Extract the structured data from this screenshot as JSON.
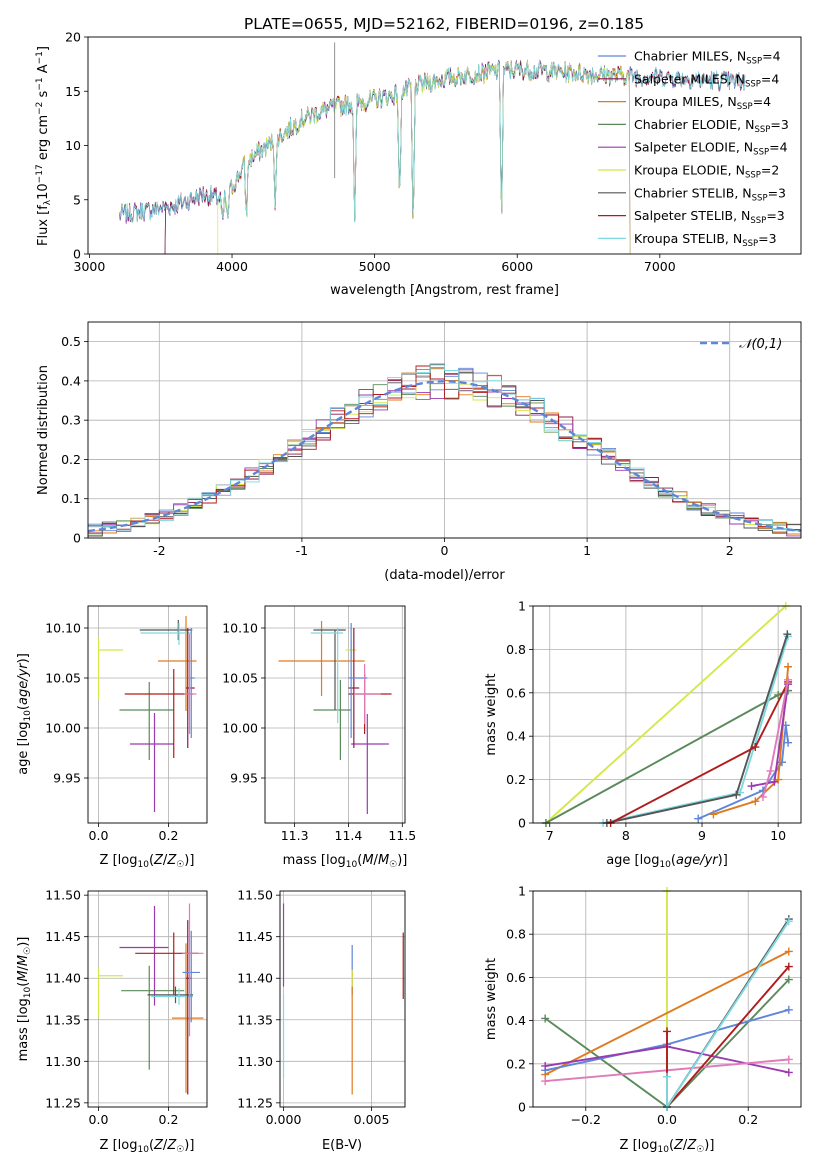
{
  "figure_title": "PLATE=0655, MJD=52162, FIBERID=0196, z=0.185",
  "colors": {
    "Chabrier MILES": "#5f86d8",
    "Salpeter MILES": "#8b1a4a",
    "Kroupa MILES": "#e07a1f",
    "Chabrier ELODIE": "#5a8a5a",
    "Salpeter ELODIE": "#9a3bb0",
    "Kroupa ELODIE": "#d4e84a",
    "Chabrier STELIB": "#555555",
    "Salpeter STELIB": "#b01c1c",
    "Kroupa STELIB": "#7fd8e0",
    "Salpeter pink": "#e07ab8"
  },
  "chart_data": [
    {
      "id": "spectrum",
      "type": "line",
      "title": "PLATE=0655, MJD=52162, FIBERID=0196, z=0.185",
      "xlabel": "wavelength [Angstrom, rest frame]",
      "ylabel": "Flux [f_λ 10^-17 erg cm^-2 s^-1 A^-1]",
      "xlim": [
        2990,
        7990
      ],
      "ylim": [
        0,
        20
      ],
      "xticks": [
        3000,
        4000,
        5000,
        6000,
        7000
      ],
      "yticks": [
        0,
        5,
        10,
        15,
        20
      ],
      "legend_loc": "right",
      "legend": [
        {
          "name": "Chabrier MILES",
          "nssp": "4"
        },
        {
          "name": "Salpeter MILES",
          "nssp": "4"
        },
        {
          "name": "Kroupa MILES",
          "nssp": "4"
        },
        {
          "name": "Chabrier ELODIE",
          "nssp": "3"
        },
        {
          "name": "Salpeter ELODIE",
          "nssp": "4"
        },
        {
          "name": "Kroupa ELODIE",
          "nssp": "2"
        },
        {
          "name": "Chabrier STELIB",
          "nssp": "3"
        },
        {
          "name": "Salpeter STELIB",
          "nssp": "3"
        },
        {
          "name": "Kroupa STELIB",
          "nssp": "3"
        }
      ],
      "continuum": [
        [
          3210,
          3.6
        ],
        [
          3400,
          4.0
        ],
        [
          3600,
          4.5
        ],
        [
          3800,
          5.5
        ],
        [
          3950,
          5.0
        ],
        [
          4100,
          8.5
        ],
        [
          4300,
          10.5
        ],
        [
          4500,
          12.5
        ],
        [
          4700,
          13.5
        ],
        [
          4900,
          14.0
        ],
        [
          5100,
          14.5
        ],
        [
          5300,
          15.5
        ],
        [
          5500,
          16.2
        ],
        [
          5800,
          16.8
        ],
        [
          6000,
          17.0
        ],
        [
          6300,
          16.8
        ],
        [
          6600,
          16.5
        ],
        [
          7000,
          16.3
        ],
        [
          7400,
          16.0
        ],
        [
          7600,
          15.8
        ]
      ],
      "absorption": [
        [
          3934,
          2.5
        ],
        [
          3969,
          2.5
        ],
        [
          4101,
          5.5
        ],
        [
          4304,
          6.5
        ],
        [
          4861,
          11.5
        ],
        [
          5175,
          11.5
        ],
        [
          5270,
          14.5
        ],
        [
          5890,
          14.8
        ]
      ],
      "spikes": [
        [
          4720,
          7.0,
          19.5
        ]
      ]
    },
    {
      "id": "residuals",
      "type": "histogram",
      "xlabel": "(data-model)/error",
      "ylabel": "Normed distribution",
      "xlim": [
        -2.5,
        2.5
      ],
      "ylim": [
        0,
        0.55
      ],
      "xticks": [
        -2,
        -1,
        0,
        1,
        2
      ],
      "yticks": [
        0.0,
        0.1,
        0.2,
        0.3,
        0.4,
        0.5
      ],
      "legend_label": "𝒩(0,1)",
      "legend_loc": "upper right",
      "bin_width": 0.1
    },
    {
      "id": "age_vs_Z",
      "type": "errorbar",
      "xlabel": "Z [log10(Z/Z☉)]",
      "ylabel": "age [log10(age/yr)]",
      "xlim": [
        -0.03,
        0.31
      ],
      "ylim": [
        9.905,
        10.122
      ],
      "xticks": [
        0.0,
        0.2
      ],
      "xtick_labels": [
        "0.0",
        "0.2"
      ],
      "yticks": [
        9.95,
        10.0,
        10.05,
        10.1
      ],
      "ytick_labels": [
        "9.95",
        "10.00",
        "10.05",
        "10.10"
      ],
      "points": [
        {
          "series": "Kroupa ELODIE",
          "x": 0.0,
          "xerr": [
            0.0,
            0.07
          ],
          "y": 10.078,
          "yerr": [
            0.05,
            0.012
          ]
        },
        {
          "series": "Chabrier ELODIE",
          "x": 0.145,
          "xerr": [
            0.085,
            0.07
          ],
          "y": 10.018,
          "yerr": [
            0.05,
            0.028
          ]
        },
        {
          "series": "Salpeter ELODIE",
          "x": 0.16,
          "xerr": [
            0.07,
            0.055
          ],
          "y": 9.984,
          "yerr": [
            0.068,
            0.031
          ]
        },
        {
          "series": "Salpeter STELIB",
          "x": 0.215,
          "xerr": [
            0.14,
            0.055
          ],
          "y": 10.034,
          "yerr": [
            0.064,
            0.025
          ]
        },
        {
          "series": "Kroupa MILES",
          "x": 0.25,
          "xerr": [
            0.08,
            0.03
          ],
          "y": 10.067,
          "yerr": [
            0.05,
            0.045
          ]
        },
        {
          "series": "Chabrier STELIB",
          "x": 0.228,
          "xerr": [
            0.11,
            0.04
          ],
          "y": 10.098,
          "yerr": [
            0.01,
            0.01
          ]
        },
        {
          "series": "Kroupa STELIB",
          "x": 0.23,
          "xerr": [
            0.11,
            0.035
          ],
          "y": 10.095,
          "yerr": [
            0.012,
            0.01
          ]
        },
        {
          "series": "Salpeter MILES",
          "x": 0.255,
          "xerr": [
            0.005,
            0.02
          ],
          "y": 10.04,
          "yerr": [
            0.06,
            0.06
          ]
        },
        {
          "series": "Chabrier MILES",
          "x": 0.265,
          "xerr": [
            0.005,
            0.01
          ],
          "y": 10.05,
          "yerr": [
            0.06,
            0.05
          ]
        },
        {
          "series": "Salpeter pink",
          "x": 0.26,
          "xerr": [
            0.015,
            0.02
          ],
          "y": 10.034,
          "yerr": [
            0.04,
            0.06
          ]
        }
      ]
    },
    {
      "id": "age_vs_mass",
      "type": "errorbar",
      "xlabel": "mass [log10(M/M☉)]",
      "ylabel": "",
      "xlim": [
        11.245,
        11.505
      ],
      "ylim": [
        9.905,
        10.122
      ],
      "xticks": [
        11.3,
        11.4,
        11.5
      ],
      "xtick_labels": [
        "11.3",
        "11.4",
        "11.5"
      ],
      "yticks": [
        9.95,
        10.0,
        10.05,
        10.1
      ],
      "ytick_labels": [
        "9.95",
        "10.00",
        "10.05",
        "10.10"
      ],
      "points": [
        {
          "series": "Kroupa ELODIE",
          "x": 11.405,
          "xerr": [
            0.01,
            0.01
          ],
          "y": 10.078,
          "yerr": [
            0.01,
            0.01
          ]
        },
        {
          "series": "Chabrier ELODIE",
          "x": 11.385,
          "xerr": [
            0.05,
            0.02
          ],
          "y": 10.018,
          "yerr": [
            0.05,
            0.03
          ]
        },
        {
          "series": "Salpeter ELODIE",
          "x": 11.435,
          "xerr": [
            0.03,
            0.04
          ],
          "y": 9.984,
          "yerr": [
            0.07,
            0.03
          ]
        },
        {
          "series": "Salpeter STELIB",
          "x": 11.43,
          "xerr": [
            0.03,
            0.05
          ],
          "y": 10.034,
          "yerr": [
            0.04,
            0.02
          ]
        },
        {
          "series": "Kroupa MILES",
          "x": 11.35,
          "xerr": [
            0.08,
            0.08
          ],
          "y": 10.067,
          "yerr": [
            0.035,
            0.04
          ]
        },
        {
          "series": "Chabrier STELIB",
          "x": 11.375,
          "xerr": [
            0.04,
            0.02
          ],
          "y": 10.098,
          "yerr": [
            0.08,
            0.0
          ]
        },
        {
          "series": "Kroupa STELIB",
          "x": 11.38,
          "xerr": [
            0.05,
            0.01
          ],
          "y": 10.095,
          "yerr": [
            0.09,
            0.005
          ]
        },
        {
          "series": "Salpeter MILES",
          "x": 11.41,
          "xerr": [
            0.01,
            0.01
          ],
          "y": 10.04,
          "yerr": [
            0.06,
            0.06
          ]
        },
        {
          "series": "Chabrier MILES",
          "x": 11.405,
          "xerr": [
            0.005,
            0.03
          ],
          "y": 10.05,
          "yerr": [
            0.06,
            0.055
          ]
        },
        {
          "series": "Salpeter pink",
          "x": 11.43,
          "xerr": [
            0.02,
            0.03
          ],
          "y": 10.034,
          "yerr": [
            0.03,
            0.03
          ]
        }
      ]
    },
    {
      "id": "weight_vs_age",
      "type": "line",
      "xlabel": "age  [log10(age/yr)]",
      "ylabel": "mass weight",
      "xlim": [
        6.78,
        10.3
      ],
      "ylim": [
        0,
        1.0
      ],
      "xticks": [
        7,
        8,
        9,
        10
      ],
      "yticks": [
        0.0,
        0.2,
        0.4,
        0.6,
        0.8,
        1.0
      ],
      "series": [
        {
          "name": "Kroupa ELODIE",
          "x": [
            6.95,
            10.1
          ],
          "y": [
            0.0,
            1.0
          ]
        },
        {
          "name": "Chabrier ELODIE",
          "x": [
            6.95,
            10.0,
            10.13
          ],
          "y": [
            0.0,
            0.59,
            0.61
          ]
        },
        {
          "name": "Kroupa STELIB",
          "x": [
            7.7,
            9.5,
            10.13
          ],
          "y": [
            0.0,
            0.14,
            0.86
          ]
        },
        {
          "name": "Chabrier STELIB",
          "x": [
            7.75,
            9.45,
            10.12
          ],
          "y": [
            0.0,
            0.13,
            0.87
          ]
        },
        {
          "name": "Salpeter STELIB",
          "x": [
            7.8,
            9.7,
            10.13
          ],
          "y": [
            0.0,
            0.35,
            0.65
          ]
        },
        {
          "name": "Chabrier MILES",
          "x": [
            8.95,
            9.8,
            10.05,
            10.1,
            10.13
          ],
          "y": [
            0.02,
            0.15,
            0.28,
            0.45,
            0.37
          ]
        },
        {
          "name": "Kroupa MILES",
          "x": [
            9.15,
            9.7,
            10.0,
            10.13
          ],
          "y": [
            0.04,
            0.1,
            0.2,
            0.72
          ]
        },
        {
          "name": "Salpeter ELODIE",
          "x": [
            9.65,
            9.95,
            10.13
          ],
          "y": [
            0.17,
            0.19,
            0.64
          ]
        },
        {
          "name": "Salpeter pink",
          "x": [
            9.8,
            9.9,
            10.13
          ],
          "y": [
            0.12,
            0.24,
            0.66
          ]
        }
      ]
    },
    {
      "id": "mass_vs_Z",
      "type": "errorbar",
      "xlabel": "Z [log10(Z/Z☉)]",
      "ylabel": "mass [log10(M/M☉)]",
      "xlim": [
        -0.03,
        0.31
      ],
      "ylim": [
        11.245,
        11.505
      ],
      "xticks": [
        0.0,
        0.2
      ],
      "xtick_labels": [
        "0.0",
        "0.2"
      ],
      "yticks": [
        11.25,
        11.3,
        11.35,
        11.4,
        11.45,
        11.5
      ],
      "ytick_labels": [
        "11.25",
        "11.30",
        "11.35",
        "11.40",
        "11.45",
        "11.50"
      ],
      "points": [
        {
          "series": "Kroupa ELODIE",
          "x": 0.0,
          "xerr": [
            0.0,
            0.07
          ],
          "y": 11.403,
          "yerr": [
            0.05,
            0.01
          ]
        },
        {
          "series": "Chabrier ELODIE",
          "x": 0.145,
          "xerr": [
            0.08,
            0.1
          ],
          "y": 11.385,
          "yerr": [
            0.095,
            0.03
          ]
        },
        {
          "series": "Salpeter ELODIE",
          "x": 0.16,
          "xerr": [
            0.1,
            0.04
          ],
          "y": 11.437,
          "yerr": [
            0.07,
            0.05
          ]
        },
        {
          "series": "Salpeter STELIB",
          "x": 0.215,
          "xerr": [
            0.11,
            0.07
          ],
          "y": 11.43,
          "yerr": [
            0.05,
            0.025
          ]
        },
        {
          "series": "Kroupa MILES",
          "x": 0.25,
          "xerr": [
            0.04,
            0.05
          ],
          "y": 11.352,
          "yerr": [
            0.09,
            0.09
          ]
        },
        {
          "series": "Chabrier STELIB",
          "x": 0.22,
          "xerr": [
            0.08,
            0.05
          ],
          "y": 11.38,
          "yerr": [
            0.01,
            0.01
          ]
        },
        {
          "series": "Kroupa STELIB",
          "x": 0.23,
          "xerr": [
            0.08,
            0.04
          ],
          "y": 11.378,
          "yerr": [
            0.01,
            0.01
          ]
        },
        {
          "series": "Salpeter MILES",
          "x": 0.255,
          "xerr": [
            0.005,
            0.01
          ],
          "y": 11.4,
          "yerr": [
            0.14,
            0.07
          ]
        },
        {
          "series": "Chabrier MILES",
          "x": 0.265,
          "xerr": [
            0.025,
            0.025
          ],
          "y": 11.407,
          "yerr": [
            0.06,
            0.05
          ]
        },
        {
          "series": "Salpeter pink",
          "x": 0.26,
          "xerr": [
            0.02,
            0.04
          ],
          "y": 11.43,
          "yerr": [
            0.1,
            0.06
          ]
        }
      ]
    },
    {
      "id": "mass_vs_ebv",
      "type": "errorbar",
      "xlabel": "E(B-V)",
      "ylabel": "",
      "xlim": [
        -0.0002,
        0.0069
      ],
      "ylim": [
        11.245,
        11.505
      ],
      "xticks": [
        0.0,
        0.005
      ],
      "xtick_labels": [
        "0.000",
        "0.005"
      ],
      "yticks": [
        11.25,
        11.3,
        11.35,
        11.4,
        11.45,
        11.5
      ],
      "ytick_labels": [
        "11.25",
        "11.30",
        "11.35",
        "11.40",
        "11.45",
        "11.50"
      ],
      "points": [
        {
          "series": "Salpeter ELODIE",
          "x": 0.0,
          "xerr": [
            0,
            0
          ],
          "y": 11.44,
          "yerr": [
            0.05,
            0.05
          ]
        },
        {
          "series": "Kroupa STELIB",
          "x": 0.0,
          "xerr": [
            0,
            0
          ],
          "y": 11.33,
          "yerr": [
            0.05,
            0.05
          ]
        },
        {
          "series": "Chabrier MILES",
          "x": 0.0039,
          "xerr": [
            0,
            0
          ],
          "y": 11.41,
          "yerr": [
            0.03,
            0.03
          ]
        },
        {
          "series": "Kroupa MILES",
          "x": 0.0039,
          "xerr": [
            0,
            0
          ],
          "y": 11.35,
          "yerr": [
            0.09,
            0.06
          ]
        },
        {
          "series": "Kroupa ELODIE",
          "x": 0.0039,
          "xerr": [
            0,
            0
          ],
          "y": 11.4,
          "yerr": [
            0.01,
            0.01
          ]
        },
        {
          "series": "Salpeter STELIB",
          "x": 0.0068,
          "xerr": [
            0,
            0
          ],
          "y": 11.415,
          "yerr": [
            0.04,
            0.04
          ]
        }
      ]
    },
    {
      "id": "weight_vs_Z",
      "type": "line",
      "xlabel": "Z [log10(Z/Z☉)]",
      "ylabel": "mass weight",
      "xlim": [
        -0.33,
        0.33
      ],
      "ylim": [
        0,
        1.0
      ],
      "xticks": [
        -0.2,
        0.0,
        0.2
      ],
      "xtick_labels": [
        "−0.2",
        "0.0",
        "0.2"
      ],
      "yticks": [
        0.0,
        0.2,
        0.4,
        0.6,
        0.8,
        1.0
      ],
      "series": [
        {
          "name": "Kroupa ELODIE",
          "x": [
            0.0,
            0.0
          ],
          "y": [
            0.0,
            1.0
          ]
        },
        {
          "name": "Chabrier ELODIE",
          "x": [
            -0.3,
            0.0,
            0.3
          ],
          "y": [
            0.41,
            0.0,
            0.59
          ]
        },
        {
          "name": "Kroupa MILES",
          "x": [
            -0.3,
            0.3
          ],
          "y": [
            0.15,
            0.72
          ]
        },
        {
          "name": "Chabrier MILES",
          "x": [
            -0.3,
            0.0,
            0.3
          ],
          "y": [
            0.17,
            0.29,
            0.45
          ]
        },
        {
          "name": "Salpeter ELODIE",
          "x": [
            -0.3,
            0.0,
            0.3
          ],
          "y": [
            0.19,
            0.28,
            0.16
          ]
        },
        {
          "name": "Salpeter pink",
          "x": [
            -0.3,
            0.3
          ],
          "y": [
            0.12,
            0.22
          ]
        },
        {
          "name": "Salpeter STELIB",
          "x": [
            0.0,
            0.0,
            0.3
          ],
          "y": [
            0.35,
            0.0,
            0.65
          ]
        },
        {
          "name": "Chabrier STELIB",
          "x": [
            0.0,
            0.3
          ],
          "y": [
            0.0,
            0.87
          ]
        },
        {
          "name": "Kroupa STELIB",
          "x": [
            0.0,
            0.0,
            0.3
          ],
          "y": [
            0.14,
            0.0,
            0.86
          ]
        }
      ]
    }
  ]
}
